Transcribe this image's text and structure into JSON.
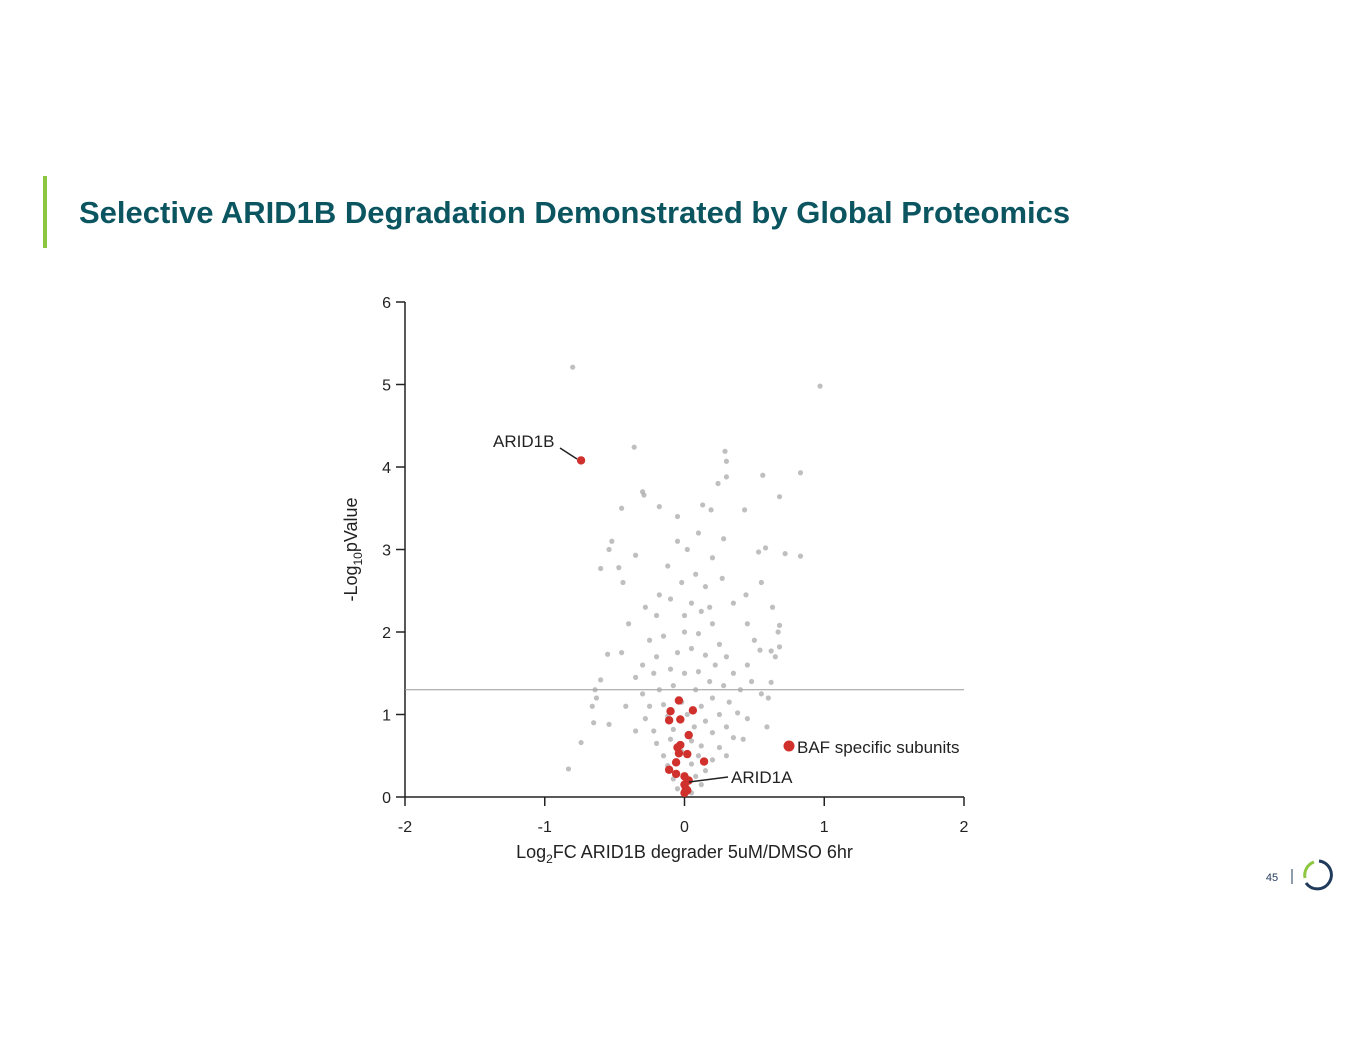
{
  "header": {
    "title": "Selective ARID1B Degradation Demonstrated by Global Proteomics"
  },
  "footer": {
    "page_number": "45"
  },
  "chart_data": {
    "type": "scatter",
    "xlabel_parts": [
      "Log",
      "2",
      "FC ARID1B degrader 5uM/DMSO 6hr"
    ],
    "ylabel_parts": [
      "-Log",
      "10",
      "pValue"
    ],
    "xlim": [
      -2,
      2
    ],
    "ylim": [
      0,
      6
    ],
    "xticks": [
      -2,
      -1,
      0,
      1,
      2
    ],
    "yticks": [
      0,
      1,
      2,
      3,
      4,
      5,
      6
    ],
    "grid": false,
    "threshold": 1.3,
    "annotations": [
      {
        "text": "ARID1B"
      },
      {
        "text": "ARID1A"
      }
    ],
    "series": [
      {
        "color": "#a9a9a9",
        "x": [
          -0.8,
          0.97,
          -0.36,
          0.29,
          0.3,
          0.56,
          0.83,
          0.3,
          0.24,
          -0.3,
          -0.29,
          0.68,
          -0.45,
          -0.18,
          0.13,
          0.19,
          0.43,
          -0.05,
          -0.52,
          -0.54,
          0.28,
          0.58,
          0.53,
          -0.35,
          0.72,
          0.83,
          -0.6,
          -0.47,
          -0.44,
          0.55,
          0.44,
          0.63,
          0.67,
          0.68,
          0.54,
          0.62,
          0.68,
          0.65,
          -0.55,
          -0.63,
          -0.66,
          -0.65,
          -0.54,
          -0.74,
          -0.83,
          0.59,
          0.62,
          0.55,
          0.6,
          -0.64,
          -0.6,
          -0.2,
          -0.1,
          0.05,
          0.12,
          0.2,
          -0.25,
          -0.15,
          0,
          0.1,
          0.25,
          0.3,
          -0.3,
          -0.2,
          -0.05,
          0.05,
          0.15,
          0.22,
          0.35,
          -0.35,
          -0.22,
          -0.1,
          0,
          0.1,
          0.18,
          0.28,
          0.4,
          -0.3,
          -0.18,
          -0.08,
          0.08,
          0.2,
          0.32,
          -0.25,
          -0.15,
          -0.02,
          0.12,
          0.25,
          0.38,
          -0.28,
          -0.12,
          0.02,
          0.15,
          0.3,
          -0.22,
          -0.08,
          0.07,
          0.2,
          0.35,
          -0.2,
          -0.1,
          0.05,
          0.12,
          0.25,
          -0.15,
          -0.02,
          0.1,
          0.2,
          0.3,
          -0.12,
          0.05,
          0.15,
          -0.08,
          0.08,
          0.12,
          -0.05,
          0.05,
          -0.02,
          0.08,
          0.15,
          -0.12,
          0.02,
          0.2,
          -0.05,
          0.1,
          0.27,
          -0.18,
          0.35,
          0.45,
          0.5,
          -0.4,
          -0.45,
          0.45,
          0.48,
          -0.42,
          0.45,
          -0.35,
          0.42,
          0,
          0.18,
          -0.28
        ],
        "y": [
          5.21,
          4.98,
          4.24,
          4.19,
          4.07,
          3.9,
          3.93,
          3.88,
          3.8,
          3.7,
          3.66,
          3.64,
          3.5,
          3.52,
          3.54,
          3.48,
          3.48,
          3.4,
          3.1,
          3.0,
          3.13,
          3.02,
          2.97,
          2.93,
          2.95,
          2.92,
          2.77,
          2.78,
          2.6,
          2.6,
          2.45,
          2.3,
          2.0,
          2.08,
          1.78,
          1.77,
          1.82,
          1.7,
          1.73,
          1.2,
          1.1,
          0.9,
          0.88,
          0.66,
          0.34,
          0.85,
          1.39,
          1.25,
          1.2,
          1.3,
          1.42,
          2.2,
          2.4,
          2.35,
          2.25,
          2.1,
          1.9,
          1.95,
          2,
          1.98,
          1.85,
          1.7,
          1.6,
          1.7,
          1.75,
          1.8,
          1.72,
          1.6,
          1.5,
          1.45,
          1.5,
          1.55,
          1.5,
          1.52,
          1.4,
          1.35,
          1.3,
          1.25,
          1.3,
          1.35,
          1.3,
          1.2,
          1.15,
          1.1,
          1.12,
          1.15,
          1.1,
          1,
          1.02,
          0.95,
          0.98,
          1,
          0.92,
          0.85,
          0.8,
          0.82,
          0.85,
          0.78,
          0.72,
          0.65,
          0.7,
          0.68,
          0.62,
          0.6,
          0.5,
          0.55,
          0.5,
          0.45,
          0.5,
          0.38,
          0.4,
          0.32,
          0.22,
          0.25,
          0.15,
          0.1,
          0.05,
          2.6,
          2.7,
          2.55,
          2.8,
          3,
          2.9,
          3.1,
          3.2,
          2.65,
          2.45,
          2.35,
          2.1,
          1.9,
          2.1,
          1.75,
          1.6,
          1.4,
          1.1,
          0.95,
          0.8,
          0.7,
          2.2,
          2.3,
          2.3
        ]
      },
      {
        "name": "BAF specific subunits",
        "color": "#d0312d",
        "x": [
          -0.74,
          -0.04,
          -0.1,
          0.06,
          -0.11,
          -0.03,
          0.03,
          -0.03,
          -0.05,
          -0.04,
          0.02,
          -0.06,
          0.14,
          -0.11,
          -0.06,
          0,
          0.03,
          0,
          0.01,
          0.02,
          0
        ],
        "y": [
          4.08,
          1.17,
          1.04,
          1.05,
          0.93,
          0.94,
          0.75,
          0.63,
          0.6,
          0.53,
          0.52,
          0.42,
          0.43,
          0.33,
          0.28,
          0.25,
          0.2,
          0.15,
          0.1,
          0.08,
          0.05
        ]
      }
    ]
  }
}
